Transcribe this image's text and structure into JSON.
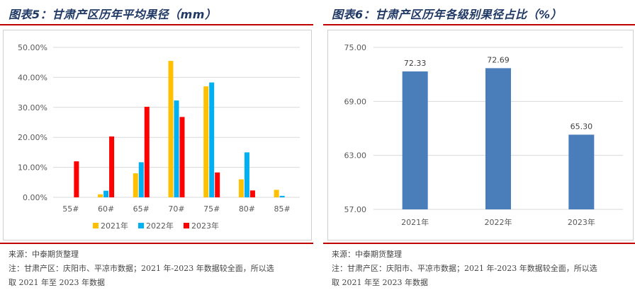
{
  "left": {
    "title": "图表5：甘肃产区历年平均果径（mm）",
    "source": "来源：中泰期货整理",
    "note_line1": "注：甘肃产区：庆阳市、平凉市数据；2021 年-2023 年数据较全面，所以选",
    "note_line2": "取 2021 年至 2023 年数据"
  },
  "right": {
    "title": "图表6：甘肃产区历年各级别果径占比（%）",
    "source": "来源：中泰期货整理",
    "note_line1": "注：甘肃产区：庆阳市、平凉市数据；2021 年-2023 年数据较全面，所以选",
    "note_line2": "取 2021 年至 2023 年数据"
  },
  "chart_data": [
    {
      "type": "bar",
      "title": "",
      "categories": [
        "55#",
        "60#",
        "65#",
        "70#",
        "75#",
        "80#",
        "85#"
      ],
      "series": [
        {
          "name": "2021年",
          "color": "#ffc000",
          "values": [
            0,
            1.0,
            8.0,
            45.5,
            37.0,
            6.0,
            2.5
          ]
        },
        {
          "name": "2022年",
          "color": "#00b0f0",
          "values": [
            0,
            2.2,
            11.7,
            32.3,
            38.3,
            15.0,
            0.5
          ]
        },
        {
          "name": "2023年",
          "color": "#ff0000",
          "values": [
            12.0,
            20.3,
            30.2,
            26.8,
            8.3,
            2.3,
            0
          ]
        }
      ],
      "ylim": [
        0,
        50
      ],
      "yticks": [
        "0.00%",
        "10.00%",
        "20.00%",
        "30.00%",
        "40.00%",
        "50.00%"
      ],
      "grid": true,
      "legend": "bottom"
    },
    {
      "type": "bar",
      "title": "",
      "categories": [
        "2021年",
        "2022年",
        "2023年"
      ],
      "series": [
        {
          "color": "#4a7ebb",
          "values": [
            72.33,
            72.69,
            65.3
          ]
        }
      ],
      "data_labels": [
        "72.33",
        "72.69",
        "65.30"
      ],
      "ylim": [
        57,
        75
      ],
      "yticks": [
        "57.00",
        "63.00",
        "69.00",
        "75.00"
      ],
      "grid": true,
      "legend": "none"
    }
  ]
}
